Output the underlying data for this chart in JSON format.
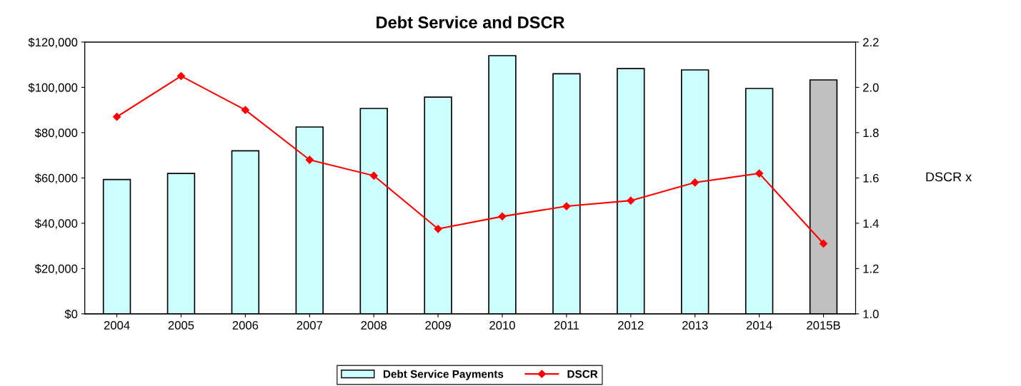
{
  "chart_data": {
    "type": "bar",
    "title": "Debt Service and DSCR",
    "y2label": "DSCR x",
    "categories": [
      "2004",
      "2005",
      "2006",
      "2007",
      "2008",
      "2009",
      "2010",
      "2011",
      "2012",
      "2013",
      "2014",
      "2015B"
    ],
    "series": [
      {
        "name": "Debt Service Payments",
        "color": "#ccffff",
        "colors": [
          "#ccffff",
          "#ccffff",
          "#ccffff",
          "#ccffff",
          "#ccffff",
          "#ccffff",
          "#ccffff",
          "#ccffff",
          "#ccffff",
          "#ccffff",
          "#ccffff",
          "#c0c0c0"
        ],
        "values": [
          59300,
          62000,
          72000,
          82500,
          90700,
          95700,
          114000,
          106000,
          108300,
          107700,
          99500,
          103300
        ]
      },
      {
        "name": "DSCR",
        "type": "line",
        "axis": "y2",
        "color": "#ff0000",
        "marker": "diamond",
        "values": [
          1.87,
          2.05,
          1.9,
          1.68,
          1.61,
          1.375,
          1.43,
          1.475,
          1.5,
          1.58,
          1.62,
          1.31
        ]
      }
    ],
    "ylim": [
      0,
      120000
    ],
    "yticks": [
      {
        "value": 0,
        "label": "$0"
      },
      {
        "value": 20000,
        "label": "$20,000"
      },
      {
        "value": 40000,
        "label": "$40,000"
      },
      {
        "value": 60000,
        "label": "$60,000"
      },
      {
        "value": 80000,
        "label": "$80,000"
      },
      {
        "value": 100000,
        "label": "$100,000"
      },
      {
        "value": 120000,
        "label": "$120,000"
      }
    ],
    "y2lim": [
      1.0,
      2.2
    ],
    "y2ticks": [
      {
        "value": 1.0,
        "label": "1.0"
      },
      {
        "value": 1.2,
        "label": "1.2"
      },
      {
        "value": 1.4,
        "label": "1.4"
      },
      {
        "value": 1.6,
        "label": "1.6"
      },
      {
        "value": 1.8,
        "label": "1.8"
      },
      {
        "value": 2.0,
        "label": "2.0"
      },
      {
        "value": 2.2,
        "label": "2.2"
      }
    ],
    "grid": false,
    "legend": "bottom"
  }
}
